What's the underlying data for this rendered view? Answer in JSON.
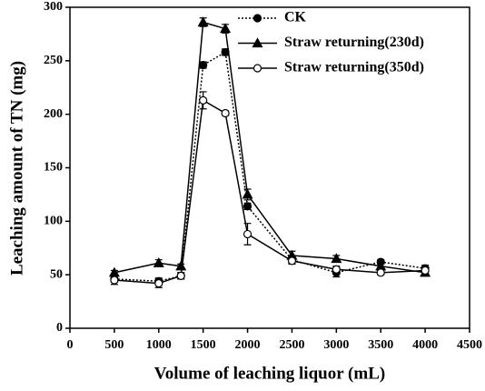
{
  "chart_data": {
    "type": "line",
    "xlabel": "Volume of leaching liquor (mL)",
    "ylabel": "Leaching amount of TN (mg)",
    "x": [
      500,
      1000,
      1250,
      1500,
      1750,
      2000,
      2500,
      3000,
      3500,
      4000
    ],
    "series": [
      {
        "name": "CK",
        "color": "#000000",
        "dash": "dotted",
        "marker": "circle",
        "filled": true,
        "values": [
          46,
          44,
          49,
          246,
          258,
          114,
          64,
          52,
          62,
          56
        ],
        "errors": [
          3,
          3,
          3,
          3,
          3,
          3,
          3,
          4,
          2,
          3
        ]
      },
      {
        "name": "Straw returning(230d)",
        "color": "#000000",
        "dash": "solid",
        "marker": "triangle",
        "filled": true,
        "values": [
          52,
          61,
          58,
          286,
          280,
          125,
          68,
          65,
          58,
          52
        ],
        "errors": [
          2,
          3,
          2,
          4,
          4,
          5,
          4,
          3,
          2,
          3
        ]
      },
      {
        "name": "Straw returning(350d)",
        "color": "#000000",
        "dash": "solid",
        "marker": "circle",
        "filled": false,
        "values": [
          45,
          42,
          49,
          213,
          201,
          88,
          63,
          55,
          52,
          54
        ],
        "errors": [
          4,
          4,
          3,
          8,
          2,
          10,
          3,
          3,
          2,
          3
        ]
      }
    ],
    "xlim": [
      0,
      4500
    ],
    "xticks": [
      0,
      500,
      1000,
      1500,
      2000,
      2500,
      3000,
      3500,
      4000,
      4500
    ],
    "ylim": [
      0,
      300
    ],
    "yticks": [
      0,
      50,
      100,
      150,
      200,
      250,
      300
    ],
    "legend": "top"
  }
}
